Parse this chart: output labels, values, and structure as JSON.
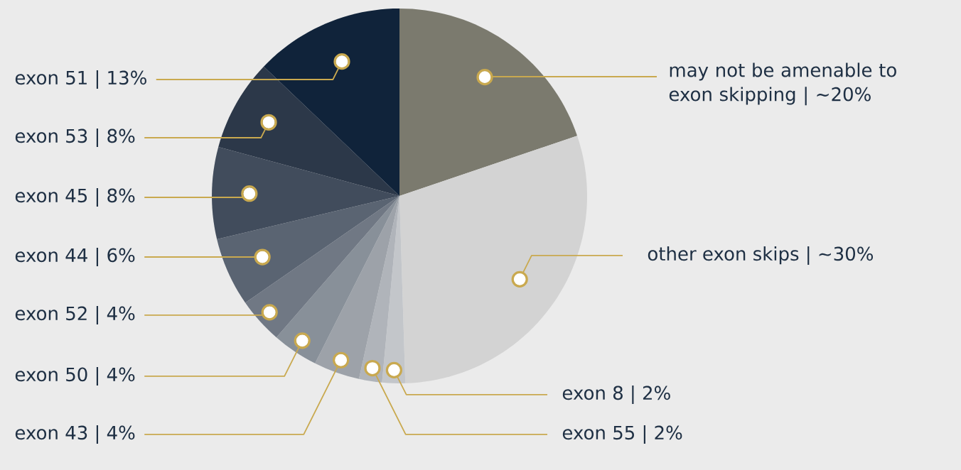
{
  "chart_data": {
    "type": "pie",
    "categories": [
      "may not be amenable to exon skipping | ~20%",
      "other exon skips | ~30%",
      "exon 8 | 2%",
      "exon 55 | 2%",
      "exon 43 | 4%",
      "exon 50 | 4%",
      "exon 52 | 4%",
      "exon 44 | 6%",
      "exon 45 | 8%",
      "exon 53 | 8%",
      "exon 51 | 13%"
    ],
    "values": [
      20,
      30,
      2,
      2,
      4,
      4,
      4,
      6,
      8,
      8,
      13
    ],
    "colors": [
      "#7b7a6e",
      "#d3d3d3",
      "#c3c6ca",
      "#b0b4ba",
      "#9da2a9",
      "#889099",
      "#707884",
      "#5a6472",
      "#414c5c",
      "#2c3849",
      "#10233a"
    ]
  }
}
